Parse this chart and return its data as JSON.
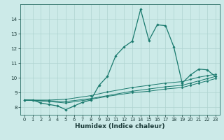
{
  "title": "",
  "xlabel": "Humidex (Indice chaleur)",
  "ylabel": "",
  "background_color": "#cceae8",
  "line_color": "#1a7a6e",
  "grid_color": "#aed4d0",
  "xlim": [
    -0.5,
    23.5
  ],
  "ylim": [
    7.5,
    15.0
  ],
  "yticks": [
    8,
    9,
    10,
    11,
    12,
    13,
    14
  ],
  "xticks": [
    0,
    1,
    2,
    3,
    4,
    5,
    6,
    7,
    8,
    9,
    10,
    11,
    12,
    13,
    14,
    15,
    16,
    17,
    18,
    19,
    20,
    21,
    22,
    23
  ],
  "series_main": [
    [
      0,
      8.5
    ],
    [
      1,
      8.5
    ],
    [
      2,
      8.3
    ],
    [
      3,
      8.2
    ],
    [
      4,
      8.1
    ],
    [
      5,
      7.85
    ],
    [
      6,
      8.1
    ],
    [
      7,
      8.35
    ],
    [
      8,
      8.5
    ],
    [
      9,
      9.5
    ],
    [
      10,
      10.1
    ],
    [
      11,
      11.5
    ],
    [
      12,
      12.1
    ],
    [
      13,
      12.5
    ],
    [
      14,
      14.65
    ],
    [
      15,
      12.55
    ],
    [
      16,
      13.6
    ],
    [
      17,
      13.55
    ],
    [
      18,
      12.1
    ],
    [
      19,
      9.65
    ],
    [
      20,
      10.2
    ],
    [
      21,
      10.6
    ],
    [
      22,
      10.55
    ],
    [
      23,
      10.1
    ]
  ],
  "series_a": [
    [
      0,
      8.5
    ],
    [
      3,
      8.5
    ],
    [
      5,
      8.55
    ],
    [
      8,
      8.8
    ],
    [
      10,
      9.05
    ],
    [
      13,
      9.35
    ],
    [
      15,
      9.5
    ],
    [
      17,
      9.65
    ],
    [
      19,
      9.75
    ],
    [
      20,
      9.9
    ],
    [
      21,
      10.05
    ],
    [
      22,
      10.15
    ],
    [
      23,
      10.25
    ]
  ],
  "series_b": [
    [
      0,
      8.5
    ],
    [
      3,
      8.45
    ],
    [
      5,
      8.4
    ],
    [
      8,
      8.6
    ],
    [
      10,
      8.8
    ],
    [
      13,
      9.1
    ],
    [
      15,
      9.25
    ],
    [
      17,
      9.4
    ],
    [
      19,
      9.5
    ],
    [
      20,
      9.65
    ],
    [
      21,
      9.8
    ],
    [
      22,
      9.95
    ],
    [
      23,
      10.1
    ]
  ],
  "series_c": [
    [
      0,
      8.5
    ],
    [
      3,
      8.4
    ],
    [
      5,
      8.3
    ],
    [
      8,
      8.55
    ],
    [
      10,
      8.75
    ],
    [
      13,
      9.0
    ],
    [
      15,
      9.1
    ],
    [
      17,
      9.25
    ],
    [
      19,
      9.35
    ],
    [
      20,
      9.5
    ],
    [
      21,
      9.65
    ],
    [
      22,
      9.8
    ],
    [
      23,
      9.95
    ]
  ]
}
